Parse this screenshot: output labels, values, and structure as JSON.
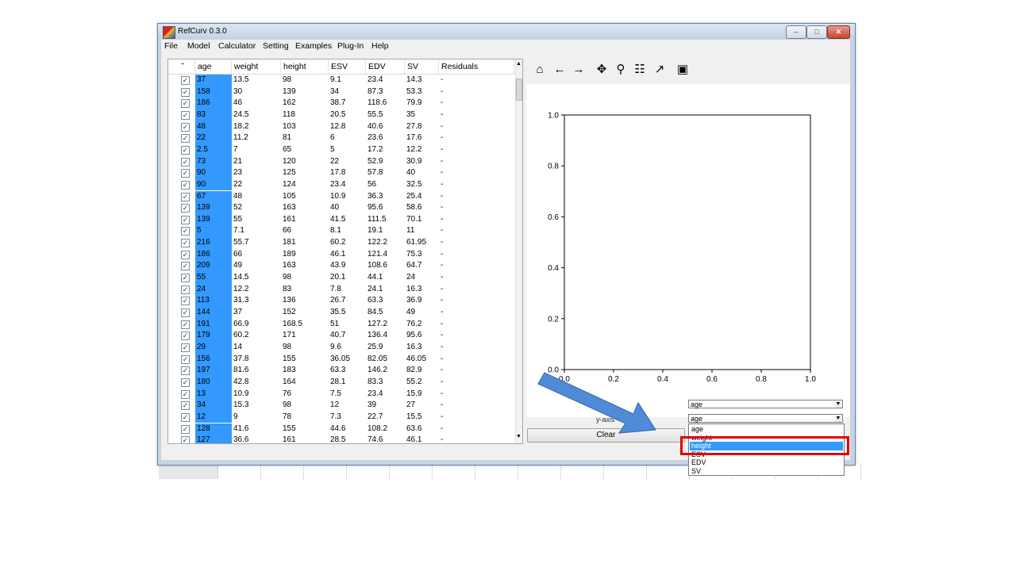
{
  "window": {
    "title": "RefCurv 0.3.0",
    "min": "‒",
    "max": "□",
    "close": "✕"
  },
  "menu": [
    "File",
    "Model",
    "Calculator",
    "Setting",
    "Examples",
    "Plug-In",
    "Help"
  ],
  "table": {
    "columns": [
      "age",
      "weight",
      "height",
      "ESV",
      "EDV",
      "SV",
      "Residuals"
    ],
    "rows": [
      [
        "37",
        "13.5",
        "98",
        "9.1",
        "23.4",
        "14.3",
        "-"
      ],
      [
        "158",
        "30",
        "139",
        "34",
        "87.3",
        "53.3",
        "-"
      ],
      [
        "186",
        "46",
        "162",
        "38.7",
        "118.6",
        "79.9",
        "-"
      ],
      [
        "83",
        "24.5",
        "118",
        "20.5",
        "55.5",
        "35",
        "-"
      ],
      [
        "48",
        "18.2",
        "103",
        "12.8",
        "40.6",
        "27.8",
        "-"
      ],
      [
        "22",
        "11.2",
        "81",
        "6",
        "23.6",
        "17.6",
        "-"
      ],
      [
        "2.5",
        "7",
        "65",
        "5",
        "17.2",
        "12.2",
        "-"
      ],
      [
        "73",
        "21",
        "120",
        "22",
        "52.9",
        "30.9",
        "-"
      ],
      [
        "90",
        "23",
        "125",
        "17.8",
        "57.8",
        "40",
        "-"
      ],
      [
        "90",
        "22",
        "124",
        "23.4",
        "56",
        "32.5",
        "-"
      ],
      [
        "67",
        "48",
        "105",
        "10.9",
        "36.3",
        "25.4",
        "-"
      ],
      [
        "139",
        "52",
        "163",
        "40",
        "95.6",
        "58.6",
        "-"
      ],
      [
        "139",
        "55",
        "161",
        "41.5",
        "111.5",
        "70.1",
        "-"
      ],
      [
        "5",
        "7.1",
        "66",
        "8.1",
        "19.1",
        "11",
        "-"
      ],
      [
        "216",
        "55.7",
        "181",
        "60.2",
        "122.2",
        "61.95",
        "-"
      ],
      [
        "186",
        "66",
        "189",
        "46.1",
        "121.4",
        "75.3",
        "-"
      ],
      [
        "209",
        "49",
        "163",
        "43.9",
        "108.6",
        "64.7",
        "-"
      ],
      [
        "55",
        "14.5",
        "98",
        "20.1",
        "44.1",
        "24",
        "-"
      ],
      [
        "24",
        "12.2",
        "83",
        "7.8",
        "24.1",
        "16.3",
        "-"
      ],
      [
        "113",
        "31.3",
        "136",
        "26.7",
        "63.3",
        "36.9",
        "-"
      ],
      [
        "144",
        "37",
        "152",
        "35.5",
        "84.5",
        "49",
        "-"
      ],
      [
        "191",
        "66.9",
        "168.5",
        "51",
        "127.2",
        "76.2",
        "-"
      ],
      [
        "179",
        "60.2",
        "171",
        "40.7",
        "136.4",
        "95.6",
        "-"
      ],
      [
        "29",
        "14",
        "98",
        "9.6",
        "25.9",
        "16.3",
        "-"
      ],
      [
        "156",
        "37.8",
        "155",
        "36.05",
        "82.05",
        "46.05",
        "-"
      ],
      [
        "197",
        "81.6",
        "183",
        "63.3",
        "146.2",
        "82.9",
        "-"
      ],
      [
        "180",
        "42.8",
        "164",
        "28.1",
        "83.3",
        "55.2",
        "-"
      ],
      [
        "13",
        "10.9",
        "76",
        "7.5",
        "23.4",
        "15.9",
        "-"
      ],
      [
        "34",
        "15.3",
        "98",
        "12",
        "39",
        "27",
        "-"
      ],
      [
        "12",
        "9",
        "78",
        "7.3",
        "22.7",
        "15.5",
        "-"
      ],
      [
        "128",
        "41.6",
        "155",
        "44.6",
        "108.2",
        "63.6",
        "-"
      ],
      [
        "127",
        "36.6",
        "161",
        "28.5",
        "74.6",
        "46.1",
        "-"
      ]
    ]
  },
  "toolbar": {
    "icons": [
      "home-icon",
      "back-arrow-icon",
      "forward-arrow-icon",
      "pan-icon",
      "zoom-icon",
      "configure-subplots-icon",
      "edit-axis-icon",
      "save-icon"
    ],
    "glyphs": [
      "⌂",
      "←",
      "→",
      "✥",
      "⚲",
      "☷",
      "↗",
      "▣"
    ]
  },
  "chart_data": {
    "type": "scatter",
    "series": [],
    "xlim": [
      0.0,
      1.0
    ],
    "ylim": [
      0.0,
      1.0
    ],
    "x_ticks": [
      "0.0",
      "0.2",
      "0.4",
      "0.6",
      "0.8",
      "1.0"
    ],
    "y_ticks": [
      "0.0",
      "0.2",
      "0.4",
      "0.6",
      "0.8",
      "1.0"
    ],
    "grid": false
  },
  "controls": {
    "x_axis_value": "age",
    "y_axis_label": "y-axis",
    "y_axis_value": "age",
    "clear_label": "Clear",
    "dropdown_options": [
      "age",
      "weight",
      "height",
      "ESV",
      "EDV",
      "SV"
    ],
    "selected_option": "height"
  },
  "annotation": {
    "arrow_color": "#4f8bd6",
    "highlight_color": "#e00000"
  }
}
